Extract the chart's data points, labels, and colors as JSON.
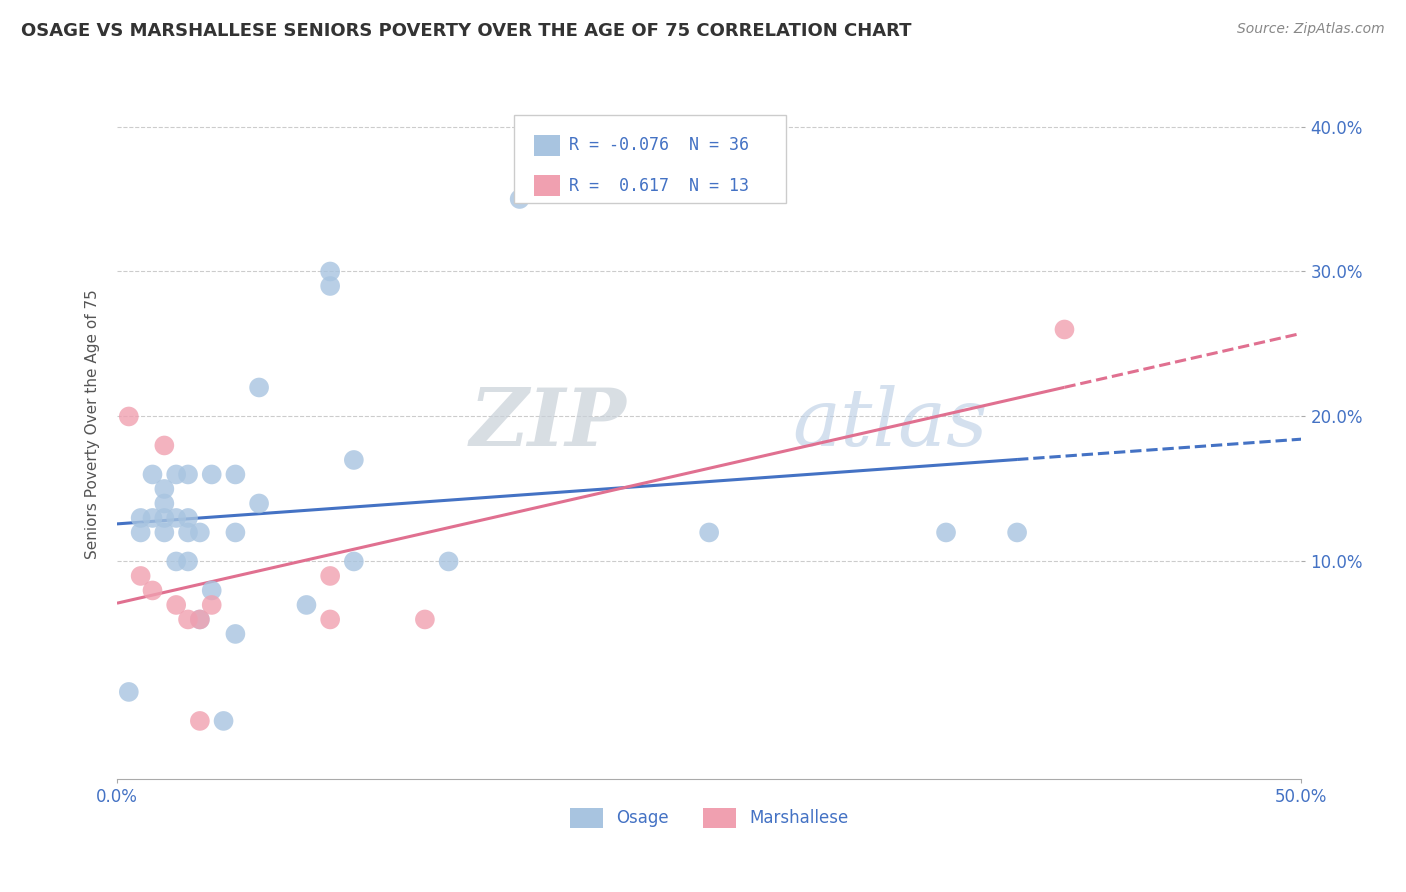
{
  "title": "OSAGE VS MARSHALLESE SENIORS POVERTY OVER THE AGE OF 75 CORRELATION CHART",
  "source": "Source: ZipAtlas.com",
  "ylabel": "Seniors Poverty Over the Age of 75",
  "xlim": [
    0.0,
    0.5
  ],
  "ylim": [
    -0.05,
    0.44
  ],
  "yticks": [
    0.1,
    0.2,
    0.3,
    0.4
  ],
  "yticklabels": [
    "10.0%",
    "20.0%",
    "30.0%",
    "40.0%"
  ],
  "xtick_left": "0.0%",
  "xtick_right": "50.0%",
  "legend_r_osage": "-0.076",
  "legend_n_osage": "36",
  "legend_r_marsh": "0.617",
  "legend_n_marsh": "13",
  "osage_color": "#a8c4e0",
  "marsh_color": "#f0a0b0",
  "osage_line_color": "#4472c4",
  "marsh_line_color": "#e07090",
  "watermark_zip": "ZIP",
  "watermark_atlas": "atlas",
  "grid_color": "#cccccc",
  "tick_color": "#4472c4",
  "osage_x": [
    0.005,
    0.01,
    0.01,
    0.015,
    0.015,
    0.02,
    0.02,
    0.02,
    0.02,
    0.025,
    0.025,
    0.025,
    0.03,
    0.03,
    0.03,
    0.03,
    0.035,
    0.035,
    0.04,
    0.04,
    0.045,
    0.05,
    0.05,
    0.05,
    0.06,
    0.06,
    0.08,
    0.09,
    0.09,
    0.1,
    0.1,
    0.14,
    0.17,
    0.25,
    0.35,
    0.38
  ],
  "osage_y": [
    0.01,
    0.12,
    0.13,
    0.13,
    0.16,
    0.12,
    0.13,
    0.14,
    0.15,
    0.1,
    0.13,
    0.16,
    0.1,
    0.12,
    0.13,
    0.16,
    0.06,
    0.12,
    0.08,
    0.16,
    -0.01,
    0.05,
    0.12,
    0.16,
    0.14,
    0.22,
    0.07,
    0.29,
    0.3,
    0.1,
    0.17,
    0.1,
    0.35,
    0.12,
    0.12,
    0.12
  ],
  "marsh_x": [
    0.005,
    0.01,
    0.015,
    0.02,
    0.025,
    0.03,
    0.035,
    0.035,
    0.04,
    0.09,
    0.09,
    0.13,
    0.4
  ],
  "marsh_y": [
    0.2,
    0.09,
    0.08,
    0.18,
    0.07,
    0.06,
    0.06,
    -0.01,
    0.07,
    0.06,
    0.09,
    0.06,
    0.26
  ]
}
